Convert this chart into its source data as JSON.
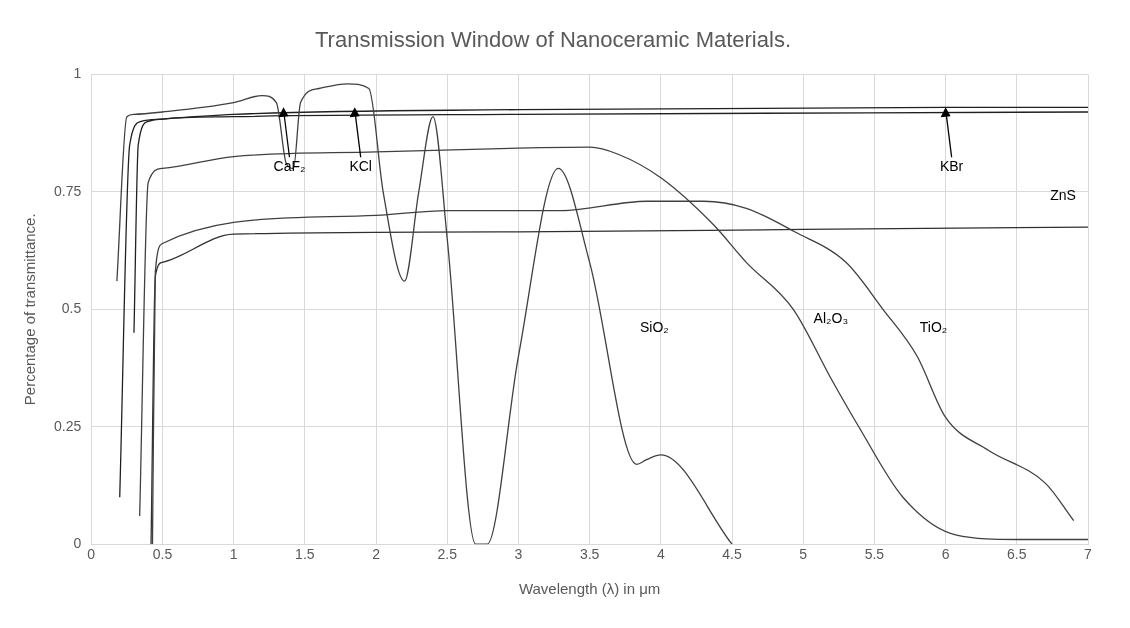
{
  "chart_data": {
    "type": "line",
    "title": "Transmission Window of Nanoceramic Materials.",
    "xlabel": "Wavelength (λ) in μm",
    "ylabel": "Percentage of transmittance.",
    "xlim": [
      0,
      7
    ],
    "xticks": [
      0,
      0.5,
      1,
      1.5,
      2,
      2.5,
      3,
      3.5,
      4,
      4.5,
      5,
      5.5,
      6,
      6.5,
      7
    ],
    "ylim": [
      0,
      1
    ],
    "yticks": [
      0,
      0.25,
      0.5,
      0.75,
      1
    ],
    "grid": true,
    "marker": "none",
    "line_style": "solid",
    "series": [
      {
        "color": "#404040",
        "x": [
          0.18,
          0.25,
          0.3,
          0.5,
          1.0,
          1.2,
          1.3,
          1.37,
          1.42,
          1.47,
          1.6,
          1.8,
          1.95,
          2.05,
          2.2,
          2.3,
          2.4,
          2.5,
          2.7,
          2.78,
          3.0,
          3.28,
          3.5,
          3.83,
          3.9,
          4.0,
          4.5
        ],
        "values": [
          0.56,
          0.91,
          0.915,
          0.92,
          0.94,
          0.955,
          0.94,
          0.81,
          0.8,
          0.94,
          0.97,
          0.98,
          0.97,
          0.75,
          0.56,
          0.75,
          0.91,
          0.65,
          0,
          0,
          0.4,
          0.8,
          0.6,
          0.17,
          0.18,
          0.19,
          0
        ]
      },
      {
        "color": "#202020",
        "x": [
          0.2,
          0.27,
          0.35,
          0.5,
          1.0,
          3.0,
          6.0,
          7.0
        ],
        "values": [
          0.1,
          0.85,
          0.9,
          0.905,
          0.915,
          0.925,
          0.93,
          0.93
        ]
      },
      {
        "color": "#202020",
        "x": [
          0.3,
          0.33,
          0.4,
          0.5,
          1.0,
          3.0,
          7.0
        ],
        "values": [
          0.45,
          0.85,
          0.9,
          0.905,
          0.91,
          0.915,
          0.92
        ]
      },
      {
        "color": "#404040",
        "x": [
          0.34,
          0.4,
          0.5,
          1.0,
          2.0,
          3.0,
          3.5,
          3.7,
          4.0,
          4.37,
          4.6,
          4.93,
          5.2,
          5.39,
          5.7,
          6.07,
          6.5,
          7.0
        ],
        "values": [
          0.06,
          0.77,
          0.8,
          0.825,
          0.835,
          0.843,
          0.845,
          0.83,
          0.78,
          0.68,
          0.6,
          0.5,
          0.35,
          0.25,
          0.1,
          0.02,
          0.01,
          0.01
        ]
      },
      {
        "color": "#404040",
        "x": [
          0.43,
          0.45,
          0.5,
          1.0,
          2.0,
          2.5,
          3.3,
          3.9,
          4.3,
          4.6,
          4.94,
          5.3,
          5.56,
          5.8,
          6.0,
          6.3,
          6.7,
          6.9
        ],
        "values": [
          0,
          0.58,
          0.64,
          0.685,
          0.7,
          0.71,
          0.71,
          0.73,
          0.73,
          0.715,
          0.665,
          0.6,
          0.5,
          0.4,
          0.27,
          0.2,
          0.13,
          0.05
        ]
      },
      {
        "color": "#303030",
        "x": [
          0.42,
          0.45,
          0.5,
          1.0,
          3.0,
          5.0,
          7.0
        ],
        "values": [
          0,
          0.57,
          0.6,
          0.66,
          0.665,
          0.67,
          0.675
        ]
      }
    ],
    "annotations": [
      {
        "text": "CaF₂",
        "x": 1.35,
        "y": 0.93
      },
      {
        "text": "KCl",
        "x": 1.85,
        "y": 0.93
      },
      {
        "text": "KBr",
        "x": 6.0,
        "y": 0.93
      },
      "ZnS",
      "SiO₂",
      "Al₂O₃",
      "TiO₂"
    ]
  }
}
